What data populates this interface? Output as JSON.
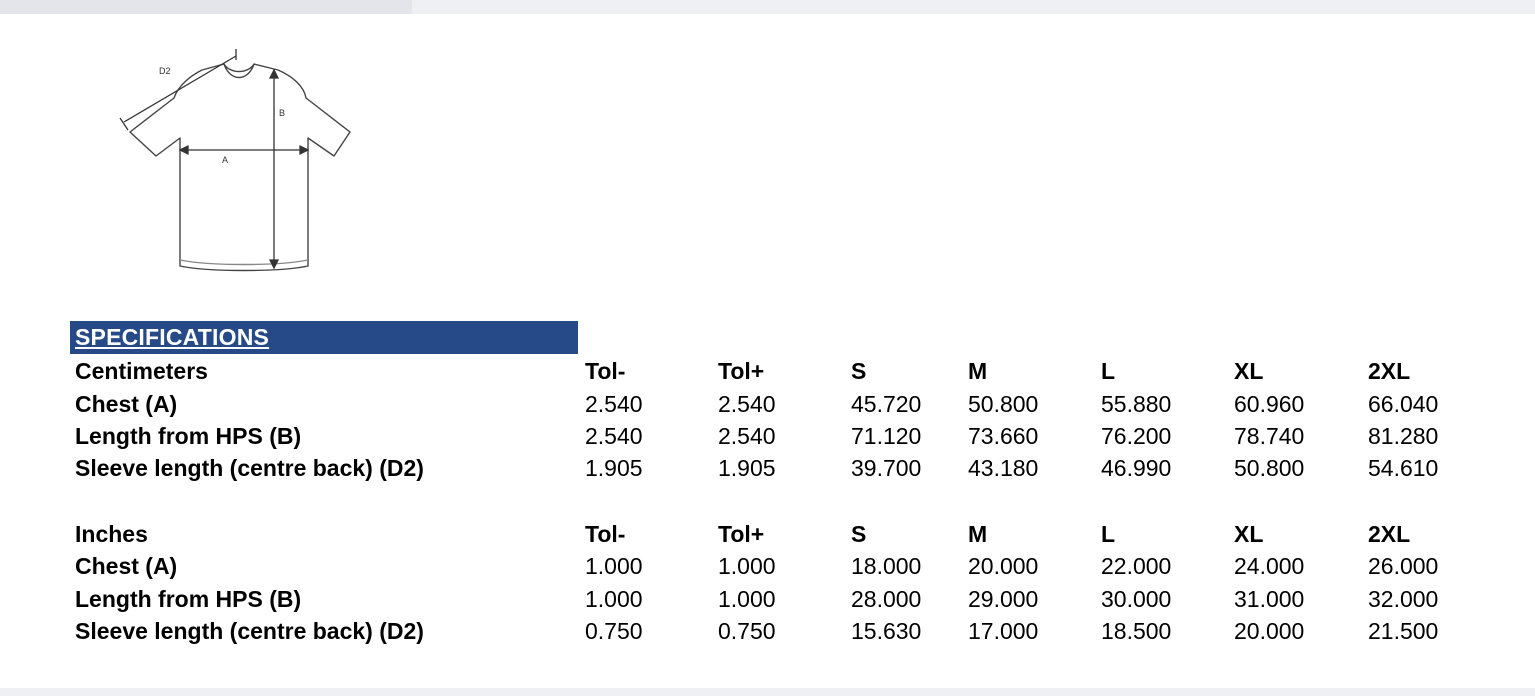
{
  "diagram_labels": {
    "a": "A",
    "b": "B",
    "d2": "D2"
  },
  "spec_title": "SPECIFICATIONS",
  "centimeters": {
    "header": {
      "label": "Centimeters",
      "cols": [
        "Tol-",
        "Tol+",
        "S",
        "M",
        "L",
        "XL",
        "2XL"
      ]
    },
    "rows": [
      {
        "label": "Chest (A)",
        "values": [
          "2.540",
          "2.540",
          "45.720",
          "50.800",
          "55.880",
          "60.960",
          "66.040"
        ]
      },
      {
        "label": "Length from HPS (B)",
        "values": [
          "2.540",
          "2.540",
          "71.120",
          "73.660",
          "76.200",
          "78.740",
          "81.280"
        ]
      },
      {
        "label": "Sleeve length (centre back) (D2)",
        "values": [
          "1.905",
          "1.905",
          "39.700",
          "43.180",
          "46.990",
          "50.800",
          "54.610"
        ]
      }
    ]
  },
  "inches": {
    "header": {
      "label": "Inches",
      "cols": [
        "Tol-",
        "Tol+",
        "S",
        "M",
        "L",
        "XL",
        "2XL"
      ]
    },
    "rows": [
      {
        "label": "Chest (A)",
        "values": [
          "1.000",
          "1.000",
          "18.000",
          "20.000",
          "22.000",
          "24.000",
          "26.000"
        ]
      },
      {
        "label": "Length from HPS (B)",
        "values": [
          "1.000",
          "1.000",
          "28.000",
          "29.000",
          "30.000",
          "31.000",
          "32.000"
        ]
      },
      {
        "label": "Sleeve length (centre back) (D2)",
        "values": [
          "0.750",
          "0.750",
          "15.630",
          "17.000",
          "18.500",
          "20.000",
          "21.500"
        ]
      }
    ]
  },
  "colors": {
    "header_bg": "#254a87",
    "header_text": "#ffffff"
  }
}
